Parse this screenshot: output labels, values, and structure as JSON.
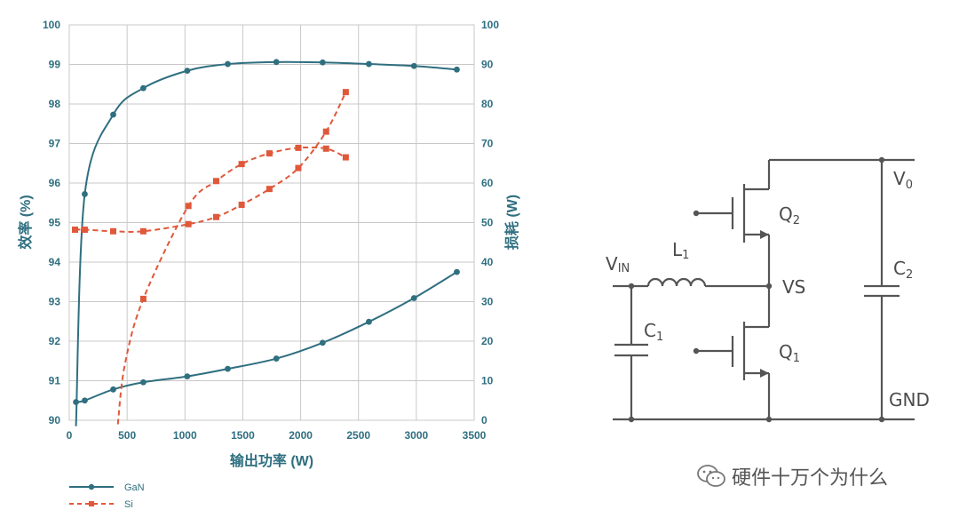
{
  "chart_data": {
    "type": "line",
    "xlabel": "输出功率 (W)",
    "ylabel_left": "效率 (%)",
    "ylabel_right": "损耗 (W)",
    "xlim": [
      0,
      3500
    ],
    "ylim_left": [
      90,
      100
    ],
    "ylim_right": [
      0,
      100
    ],
    "x_ticks": [
      "0",
      "500",
      "1000",
      "1500",
      "2000",
      "2500",
      "3000",
      "3500"
    ],
    "y_left_ticks": [
      "90",
      "91",
      "92",
      "93",
      "94",
      "95",
      "96",
      "97",
      "98",
      "99",
      "100"
    ],
    "y_right_ticks": [
      "0",
      "10",
      "20",
      "30",
      "40",
      "50",
      "60",
      "70",
      "80",
      "90",
      "100"
    ],
    "grid": true,
    "legend_position": "bottom-left",
    "series": [
      {
        "name": "GaN",
        "legend_label": "GaN",
        "axis": "left",
        "kind": "efficiency",
        "style": "solid",
        "color": "#2f6f80",
        "x": [
          58,
          134,
          380,
          640,
          1020,
          1370,
          1790,
          2190,
          2590,
          2980,
          3350
        ],
        "y": [
          89.85,
          95.72,
          97.73,
          98.4,
          98.84,
          99.01,
          99.06,
          99.05,
          99.01,
          98.96,
          98.87
        ],
        "markers": [
          false,
          true,
          true,
          true,
          true,
          true,
          true,
          true,
          true,
          true,
          true
        ]
      },
      {
        "name": "GaN",
        "axis": "right",
        "kind": "loss",
        "style": "solid",
        "color": "#2f6f80",
        "x": [
          58,
          134,
          380,
          640,
          1020,
          1370,
          1790,
          2190,
          2590,
          2980,
          3350
        ],
        "y": [
          4.6,
          5.0,
          7.8,
          9.6,
          11.1,
          13.0,
          15.6,
          19.6,
          24.9,
          30.9,
          37.5
        ],
        "markers": [
          true,
          true,
          true,
          true,
          true,
          true,
          true,
          true,
          true,
          true,
          true
        ]
      },
      {
        "name": "Si",
        "legend_label": "Si",
        "axis": "left",
        "kind": "efficiency",
        "style": "dashed",
        "color": "#e0583a",
        "x": [
          420,
          480,
          640,
          1030,
          1270,
          1490,
          1730,
          1980,
          2220,
          2390
        ],
        "y": [
          89.9,
          91.4,
          93.07,
          95.42,
          96.05,
          96.48,
          96.75,
          96.89,
          96.87,
          96.65
        ],
        "markers": [
          false,
          false,
          true,
          true,
          true,
          true,
          true,
          true,
          true,
          true
        ]
      },
      {
        "name": "Si",
        "axis": "right",
        "kind": "loss",
        "style": "dashed",
        "color": "#e0583a",
        "x": [
          50,
          134,
          380,
          640,
          1030,
          1270,
          1490,
          1730,
          1980,
          2220,
          2390
        ],
        "y": [
          48.2,
          48.2,
          47.8,
          47.8,
          49.6,
          51.4,
          54.5,
          58.5,
          63.8,
          73.0,
          83.0
        ],
        "markers": [
          true,
          true,
          true,
          true,
          true,
          true,
          true,
          true,
          true,
          true,
          true
        ]
      }
    ]
  },
  "circuit": {
    "labels": {
      "vin_main": "V",
      "vin_sub": "IN",
      "l_main": "L",
      "l_sub": "1",
      "c1_main": "C",
      "c1_sub": "1",
      "c2_main": "C",
      "c2_sub": "2",
      "q1_main": "Q",
      "q1_sub": "1",
      "q2_main": "Q",
      "q2_sub": "2",
      "v0_main": "V",
      "v0_sub": "0",
      "vs": "VS",
      "gnd": "GND"
    }
  },
  "watermark": {
    "text": "硬件十万个为什么",
    "icon": "wechat-icon"
  },
  "colors": {
    "gan": "#2f6f80",
    "si": "#e0583a",
    "grid": "#c8c8c8",
    "circuit": "#555555"
  }
}
